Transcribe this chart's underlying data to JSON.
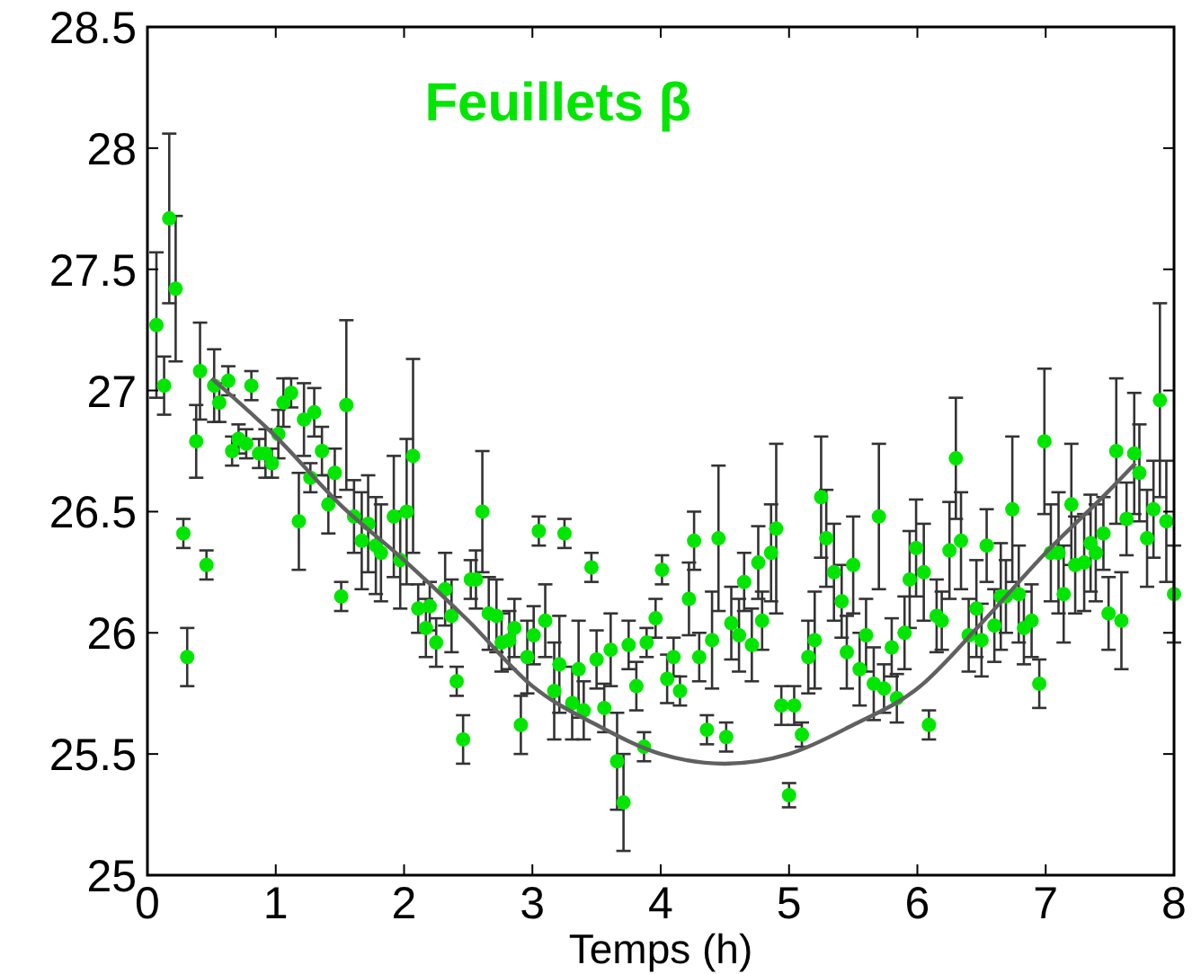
{
  "chart_data": {
    "type": "scatter",
    "title": "Feuillets β",
    "xlabel": "Temps (h)",
    "xlim": [
      0,
      8
    ],
    "ylim": [
      25,
      28.5
    ],
    "xticks": [
      0,
      1,
      2,
      3,
      4,
      5,
      6,
      7,
      8
    ],
    "yticks": [
      25,
      25.5,
      26,
      26.5,
      27,
      27.5,
      28,
      28.5
    ],
    "series": [
      {
        "color": "#00e600",
        "marker": "circle",
        "x": [
          0.07,
          0.13,
          0.17,
          0.22,
          0.28,
          0.31,
          0.38,
          0.41,
          0.46,
          0.52,
          0.56,
          0.63,
          0.66,
          0.71,
          0.77,
          0.81,
          0.87,
          0.92,
          0.97,
          1.02,
          1.06,
          1.12,
          1.18,
          1.22,
          1.27,
          1.3,
          1.36,
          1.41,
          1.46,
          1.51,
          1.55,
          1.61,
          1.67,
          1.72,
          1.78,
          1.82,
          1.92,
          1.97,
          2.02,
          2.07,
          2.11,
          2.17,
          2.2,
          2.25,
          2.32,
          2.37,
          2.41,
          2.46,
          2.52,
          2.56,
          2.61,
          2.66,
          2.72,
          2.76,
          2.82,
          2.86,
          2.91,
          2.96,
          3.01,
          3.05,
          3.1,
          3.17,
          3.21,
          3.25,
          3.31,
          3.36,
          3.4,
          3.46,
          3.5,
          3.56,
          3.61,
          3.66,
          3.71,
          3.75,
          3.81,
          3.87,
          3.89,
          3.96,
          4.01,
          4.05,
          4.1,
          4.15,
          4.22,
          4.26,
          4.3,
          4.36,
          4.4,
          4.45,
          4.51,
          4.55,
          4.61,
          4.65,
          4.71,
          4.76,
          4.79,
          4.86,
          4.9,
          4.94,
          5.0,
          5.04,
          5.1,
          5.15,
          5.2,
          5.25,
          5.29,
          5.35,
          5.41,
          5.45,
          5.5,
          5.55,
          5.6,
          5.66,
          5.7,
          5.74,
          5.8,
          5.84,
          5.9,
          5.94,
          5.99,
          6.05,
          6.09,
          6.15,
          6.19,
          6.25,
          6.3,
          6.34,
          6.4,
          6.46,
          6.5,
          6.54,
          6.6,
          6.65,
          6.69,
          6.74,
          6.79,
          6.83,
          6.89,
          6.95,
          6.99,
          7.04,
          7.1,
          7.14,
          7.2,
          7.23,
          7.3,
          7.35,
          7.39,
          7.45,
          7.49,
          7.55,
          7.59,
          7.63,
          7.69,
          7.73,
          7.79,
          7.84,
          7.89,
          7.94,
          8.0
        ],
        "values": [
          27.27,
          27.02,
          27.71,
          27.42,
          26.41,
          25.9,
          26.79,
          27.08,
          26.28,
          27.02,
          26.95,
          27.04,
          26.75,
          26.8,
          26.78,
          27.02,
          26.74,
          26.74,
          26.7,
          26.82,
          26.95,
          26.99,
          26.46,
          26.88,
          26.64,
          26.91,
          26.75,
          26.53,
          26.66,
          26.15,
          26.94,
          26.48,
          26.38,
          26.45,
          26.36,
          26.33,
          26.48,
          26.3,
          26.5,
          26.73,
          26.1,
          26.02,
          26.11,
          25.96,
          26.18,
          26.07,
          25.8,
          25.56,
          26.22,
          26.22,
          26.5,
          26.08,
          26.07,
          25.96,
          25.97,
          26.02,
          25.62,
          25.9,
          25.99,
          26.42,
          26.05,
          25.76,
          25.87,
          26.41,
          25.71,
          25.85,
          25.68,
          26.27,
          25.89,
          25.69,
          25.93,
          25.47,
          25.3,
          25.95,
          25.78,
          25.53,
          25.96,
          26.06,
          26.26,
          25.81,
          25.9,
          25.76,
          26.14,
          26.38,
          25.9,
          25.6,
          25.97,
          26.39,
          25.57,
          26.04,
          25.99,
          26.21,
          25.95,
          26.29,
          26.05,
          26.33,
          26.43,
          25.7,
          25.33,
          25.7,
          25.58,
          25.9,
          25.97,
          26.56,
          26.39,
          26.25,
          26.13,
          25.92,
          26.28,
          25.85,
          25.99,
          25.79,
          26.48,
          25.77,
          25.94,
          25.73,
          26.0,
          26.22,
          26.35,
          26.25,
          25.62,
          26.07,
          26.05,
          26.34,
          26.72,
          26.38,
          25.99,
          26.1,
          25.97,
          26.36,
          26.03,
          26.15,
          26.15,
          26.51,
          26.16,
          26.02,
          26.05,
          25.79,
          26.79,
          26.33,
          26.33,
          26.16,
          26.53,
          26.28,
          26.29,
          26.37,
          26.33,
          26.41,
          26.08,
          26.75,
          26.05,
          26.47,
          26.74,
          26.66,
          26.39,
          26.51,
          26.96,
          26.46,
          26.16
        ],
        "errors": [
          0.3,
          0.12,
          0.35,
          0.3,
          0.06,
          0.12,
          0.15,
          0.2,
          0.06,
          0.15,
          0.08,
          0.06,
          0.06,
          0.06,
          0.06,
          0.06,
          0.06,
          0.1,
          0.06,
          0.1,
          0.1,
          0.06,
          0.2,
          0.15,
          0.06,
          0.1,
          0.1,
          0.12,
          0.1,
          0.06,
          0.35,
          0.15,
          0.2,
          0.2,
          0.2,
          0.2,
          0.25,
          0.2,
          0.3,
          0.4,
          0.1,
          0.12,
          0.1,
          0.1,
          0.15,
          0.15,
          0.06,
          0.1,
          0.08,
          0.12,
          0.25,
          0.15,
          0.15,
          0.12,
          0.12,
          0.12,
          0.12,
          0.15,
          0.12,
          0.06,
          0.15,
          0.2,
          0.2,
          0.06,
          0.15,
          0.2,
          0.12,
          0.06,
          0.12,
          0.1,
          0.15,
          0.2,
          0.2,
          0.1,
          0.1,
          0.06,
          0.06,
          0.08,
          0.06,
          0.1,
          0.08,
          0.06,
          0.15,
          0.12,
          0.1,
          0.06,
          0.2,
          0.3,
          0.06,
          0.15,
          0.15,
          0.12,
          0.15,
          0.15,
          0.12,
          0.2,
          0.35,
          0.08,
          0.05,
          0.08,
          0.05,
          0.15,
          0.2,
          0.25,
          0.2,
          0.2,
          0.15,
          0.15,
          0.2,
          0.15,
          0.15,
          0.15,
          0.3,
          0.1,
          0.12,
          0.1,
          0.15,
          0.2,
          0.2,
          0.2,
          0.06,
          0.15,
          0.12,
          0.2,
          0.25,
          0.2,
          0.15,
          0.2,
          0.15,
          0.15,
          0.15,
          0.22,
          0.15,
          0.3,
          0.2,
          0.15,
          0.15,
          0.1,
          0.3,
          0.2,
          0.25,
          0.2,
          0.25,
          0.2,
          0.2,
          0.2,
          0.2,
          0.15,
          0.15,
          0.3,
          0.2,
          0.15,
          0.25,
          0.2,
          0.2,
          0.2,
          0.4,
          0.25,
          0.2
        ]
      },
      {
        "type": "line",
        "color": "#606060",
        "marker": "none",
        "x": [
          0.5,
          1,
          1.5,
          2,
          2.5,
          3,
          3.5,
          4,
          4.5,
          5,
          5.5,
          6,
          6.5,
          7,
          7.5,
          7.7
        ],
        "values": [
          27.05,
          26.81,
          26.53,
          26.3,
          26.05,
          25.78,
          25.62,
          25.5,
          25.46,
          25.5,
          25.62,
          25.77,
          26.04,
          26.33,
          26.59,
          26.7
        ]
      }
    ]
  }
}
